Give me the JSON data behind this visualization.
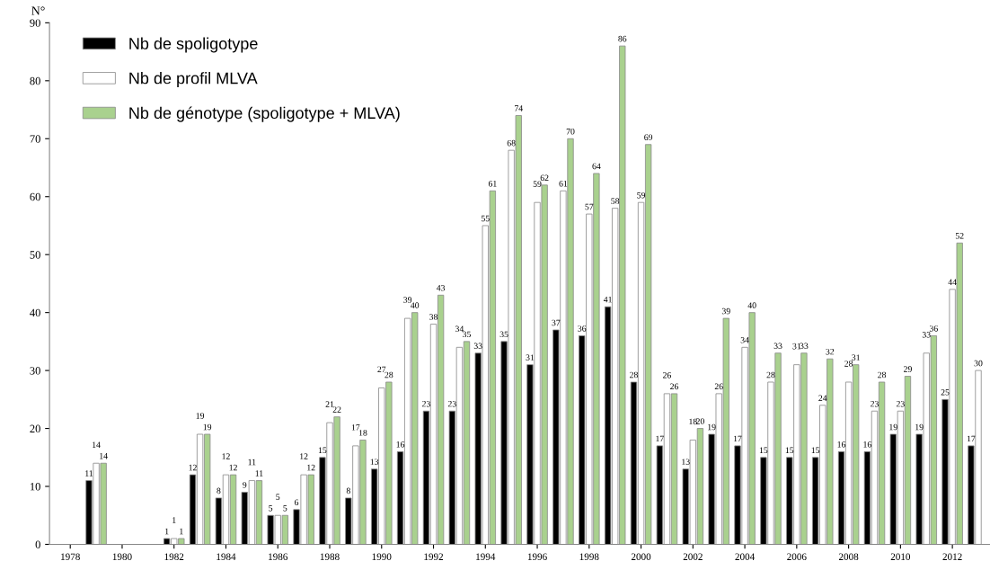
{
  "chart_data": {
    "type": "bar",
    "ylabel": "N°",
    "categories": [
      "1978",
      null,
      "1980",
      null,
      "1982",
      null,
      "1984",
      null,
      "1986",
      null,
      "1988",
      null,
      "1990",
      null,
      "1992",
      null,
      "1994",
      null,
      "1996",
      null,
      "1998",
      null,
      "2000",
      null,
      "2002",
      null,
      "2004",
      null,
      "2006",
      null,
      "2008",
      null,
      "2010",
      null,
      "2012",
      null
    ],
    "series": [
      {
        "name": "Nb de spoligotype",
        "color": "#000000",
        "values": [
          null,
          11,
          null,
          null,
          1,
          12,
          8,
          9,
          5,
          6,
          15,
          8,
          13,
          16,
          23,
          23,
          33,
          35,
          31,
          37,
          36,
          41,
          28,
          17,
          13,
          19,
          17,
          15,
          15,
          15,
          16,
          16,
          19,
          19,
          25,
          17
        ]
      },
      {
        "name": "Nb de profil MLVA",
        "color": "#ffffff",
        "values": [
          null,
          14,
          null,
          null,
          1,
          19,
          12,
          11,
          5,
          12,
          21,
          17,
          27,
          39,
          38,
          34,
          55,
          68,
          59,
          61,
          57,
          58,
          59,
          26,
          18,
          26,
          34,
          28,
          31,
          24,
          28,
          23,
          23,
          33,
          44,
          30
        ]
      },
      {
        "name": "Nb de génotype (spoligotype + MLVA)",
        "color": "#a9d18e",
        "values": [
          null,
          14,
          null,
          null,
          1,
          19,
          12,
          11,
          5,
          12,
          22,
          18,
          28,
          40,
          43,
          35,
          61,
          74,
          62,
          70,
          64,
          86,
          69,
          26,
          20,
          39,
          40,
          33,
          33,
          32,
          31,
          28,
          29,
          36,
          52,
          null
        ]
      }
    ],
    "ylim": [
      0,
      90
    ],
    "yticks": [
      0,
      10,
      20,
      30,
      40,
      50,
      60,
      70,
      80,
      90
    ],
    "data_labels": true,
    "legend": "top left",
    "grid": false
  }
}
